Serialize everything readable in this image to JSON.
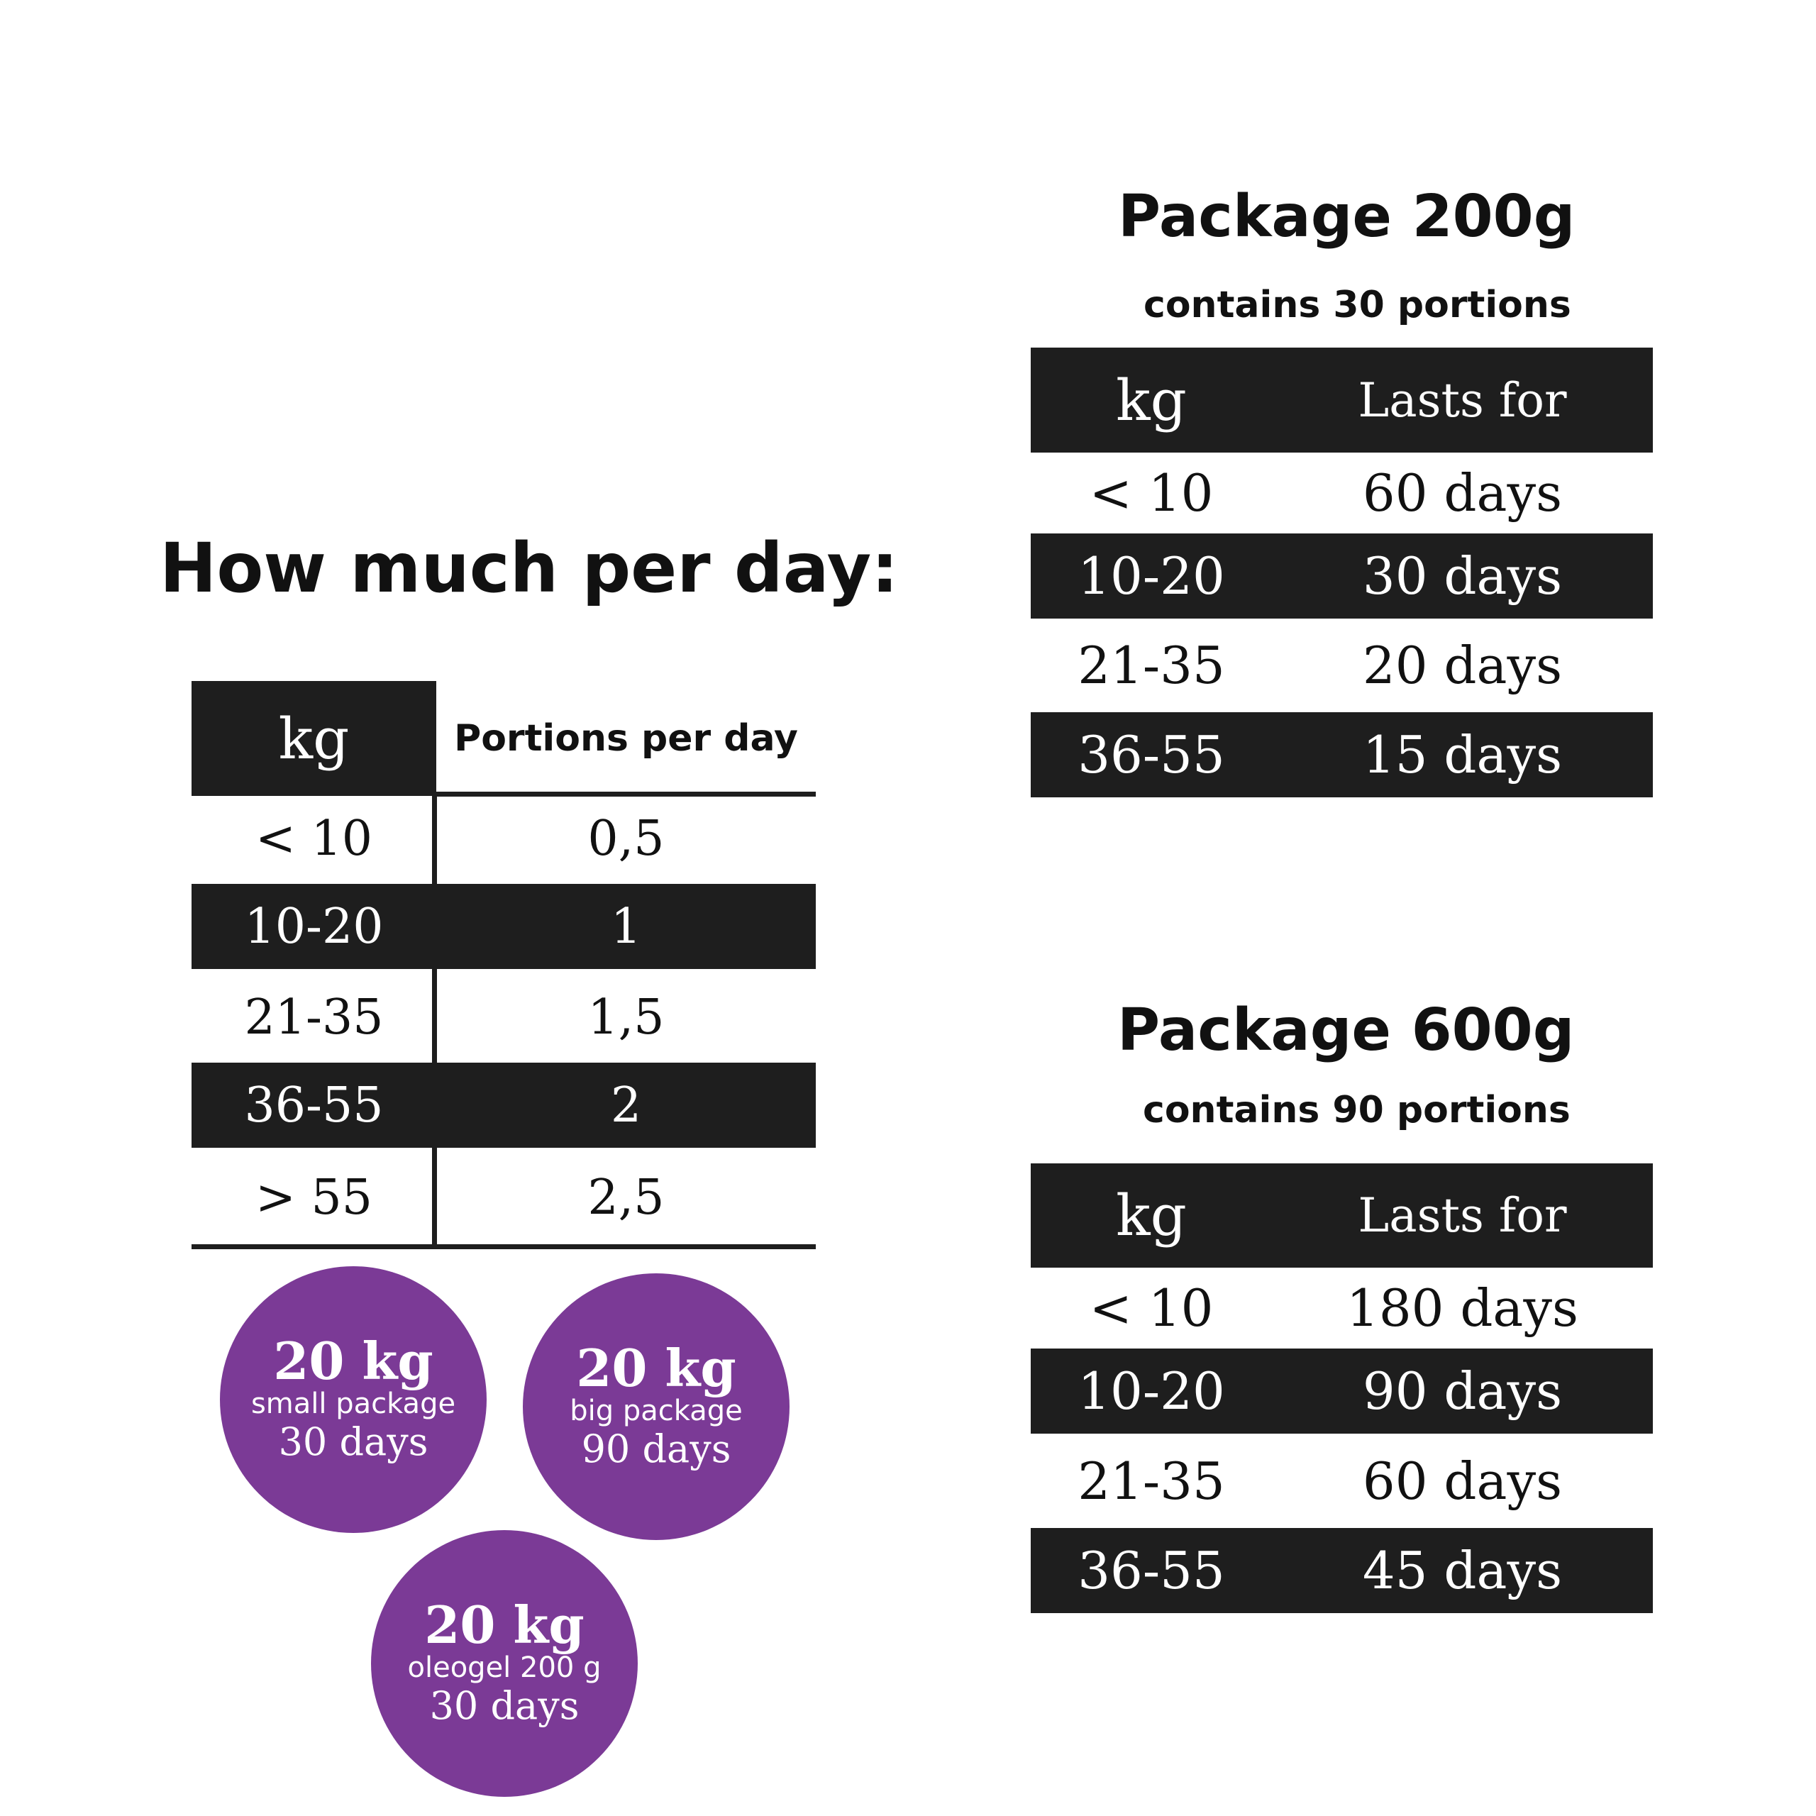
{
  "left_section": {
    "title": "How much per day:",
    "headers": {
      "kg": "kg",
      "portions": "Portions per day"
    },
    "rows": [
      {
        "kg": "< 10",
        "portions": "0,5"
      },
      {
        "kg": "10-20",
        "portions": "1"
      },
      {
        "kg": "21-35",
        "portions": "1,5"
      },
      {
        "kg": "36-55",
        "portions": "2"
      },
      {
        "kg": "> 55",
        "portions": "2,5"
      }
    ]
  },
  "package_200": {
    "title": "Package 200g",
    "subtitle": "contains 30 portions",
    "headers": {
      "kg": "kg",
      "lasts": "Lasts for"
    },
    "rows": [
      {
        "kg": "< 10",
        "lasts": "60 days"
      },
      {
        "kg": "10-20",
        "lasts": "30 days"
      },
      {
        "kg": "21-35",
        "lasts": "20 days"
      },
      {
        "kg": "36-55",
        "lasts": "15 days"
      }
    ]
  },
  "package_600": {
    "title": "Package 600g",
    "subtitle": "contains 90 portions",
    "headers": {
      "kg": "kg",
      "lasts": "Lasts for"
    },
    "rows": [
      {
        "kg": "< 10",
        "lasts": "180 days"
      },
      {
        "kg": "10-20",
        "lasts": "90 days"
      },
      {
        "kg": "21-35",
        "lasts": "60 days"
      },
      {
        "kg": "36-55",
        "lasts": "45 days"
      }
    ]
  },
  "badges": [
    {
      "weight": "20 kg",
      "package": "small package",
      "duration": "30 days"
    },
    {
      "weight": "20 kg",
      "package": "big package",
      "duration": "90 days"
    },
    {
      "weight": "20 kg",
      "package": "oleogel 200 g",
      "duration": "30 days"
    }
  ],
  "colors": {
    "dark_row": "#1e1e1e",
    "badge_purple": "#7b3a96",
    "background": "#ffffff"
  }
}
